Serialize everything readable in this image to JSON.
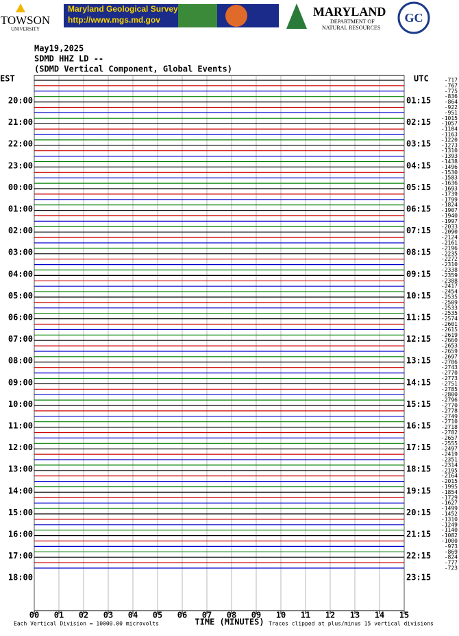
{
  "header": {
    "towson": "TOWSON",
    "towson_sub": "UNIVERSITY",
    "mgs_title": "Maryland Geological Survey",
    "mgs_url": "http://www.mgs.md.gov",
    "md": "MARYLAND",
    "dnr1": "DEPARTMENT OF",
    "dnr2": "NATURAL RESOURCES",
    "gc": "GC"
  },
  "chart_data": {
    "type": "helicorder",
    "date": "May19,2025",
    "station": "SDMD HHZ LD --",
    "subtitle": "(SDMD Vertical Component, Global Events)",
    "left_zone": "EST",
    "right_zone": "UTC",
    "left_labels": [
      "20:00",
      "21:00",
      "22:00",
      "23:00",
      "00:00",
      "01:00",
      "02:00",
      "03:00",
      "04:00",
      "05:00",
      "06:00",
      "07:00",
      "08:00",
      "09:00",
      "10:00",
      "11:00",
      "12:00",
      "13:00",
      "14:00",
      "15:00",
      "16:00",
      "17:00",
      "18:00"
    ],
    "right_labels": [
      "01:15",
      "02:15",
      "03:15",
      "04:15",
      "05:15",
      "06:15",
      "07:15",
      "08:15",
      "09:15",
      "10:15",
      "11:15",
      "12:15",
      "13:15",
      "14:15",
      "15:15",
      "16:15",
      "17:15",
      "18:15",
      "19:15",
      "20:15",
      "21:15",
      "22:15",
      "23:15"
    ],
    "offsets": [
      -717,
      -767,
      -775,
      -836,
      -864,
      -922,
      -951,
      -1015,
      -1057,
      -1104,
      -1163,
      -1220,
      -1273,
      -1310,
      -1393,
      -1438,
      -1496,
      -1530,
      -1583,
      -1636,
      -1693,
      -1739,
      -1799,
      -1824,
      -1907,
      -1940,
      -1997,
      -2033,
      -2090,
      -2124,
      -2161,
      -2196,
      -2235,
      -2272,
      -2310,
      -2338,
      -2359,
      -2388,
      -2417,
      -2454,
      -2535,
      -2509,
      -2533,
      -2535,
      -2574,
      -2601,
      -2615,
      -2619,
      -2660,
      -2653,
      -2659,
      -2697,
      -2706,
      -2743,
      -2770,
      -2773,
      -2751,
      -2785,
      -2800,
      -2796,
      -2770,
      -2778,
      -2749,
      -2710,
      -2718,
      -2782,
      -2657,
      -2555,
      -2497,
      -2419,
      -2351,
      -2314,
      -2195,
      -2164,
      -2015,
      -1995,
      -1854,
      -1729,
      -1627,
      -1499,
      -1452,
      -1310,
      -1249,
      -1140,
      -1082,
      -1000,
      -973,
      -869,
      -824,
      -777,
      -723
    ],
    "trace_colors": [
      "#000000",
      "#cc0000",
      "#0000cc",
      "#008000"
    ],
    "xlim": [
      0,
      15
    ],
    "xticks": [
      {
        "value": 0,
        "label": "00"
      },
      {
        "value": 1,
        "label": "01"
      },
      {
        "value": 2,
        "label": "02"
      },
      {
        "value": 3,
        "label": "03"
      },
      {
        "value": 4,
        "label": "04"
      },
      {
        "value": 5,
        "label": "05"
      },
      {
        "value": 6,
        "label": "06"
      },
      {
        "value": 7,
        "label": "07"
      },
      {
        "value": 8,
        "label": "08"
      },
      {
        "value": 9,
        "label": "09"
      },
      10,
      11,
      12,
      13,
      14,
      15
    ],
    "xlabel": "TIME (MINUTES)",
    "scale_note": "Each Vertical Division = 10000.00 microvolts",
    "clip_note": "Traces clipped at plus/minus 15 vertical divisions",
    "grid": true
  }
}
